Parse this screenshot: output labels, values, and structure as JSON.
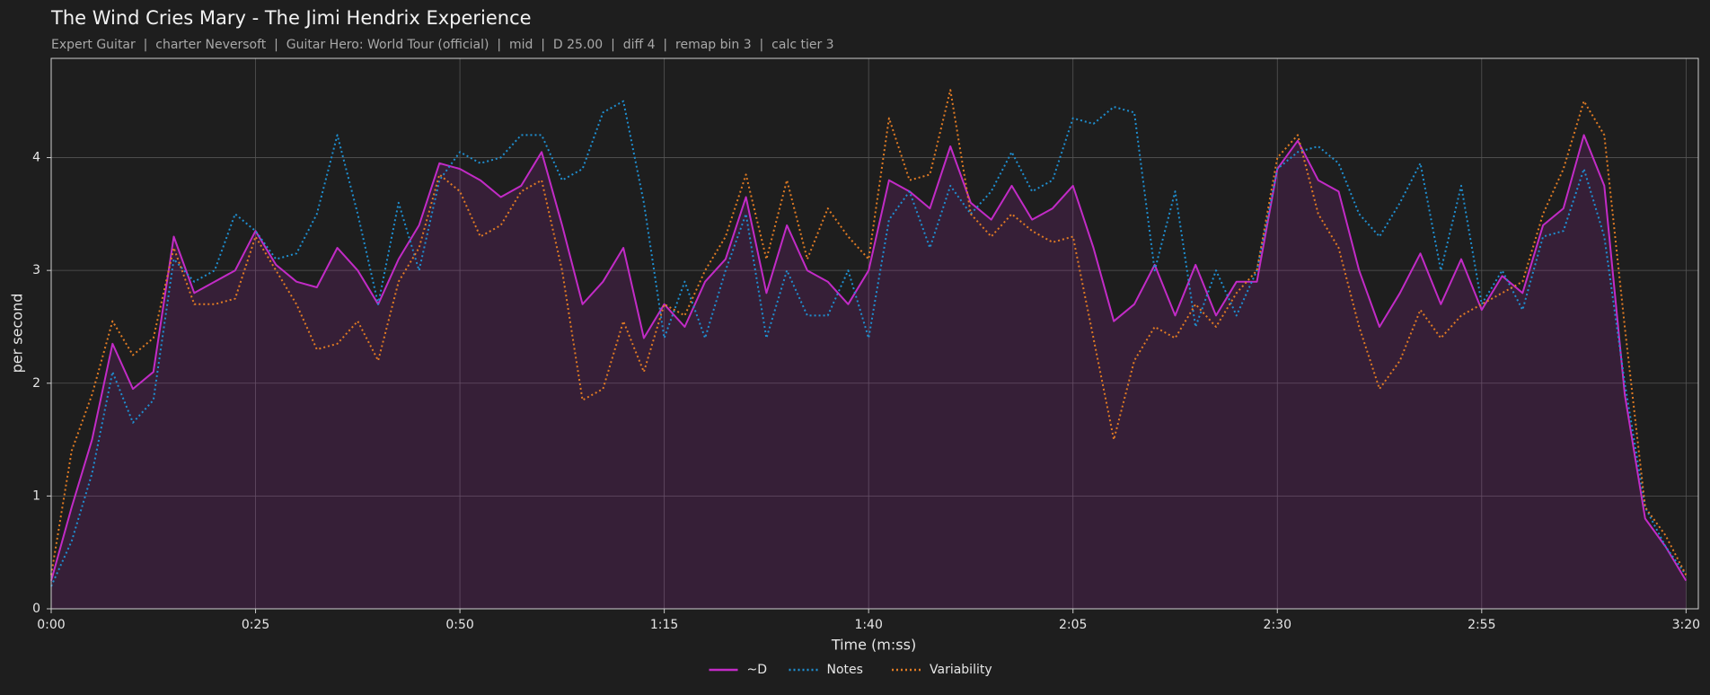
{
  "chart_data": {
    "type": "line",
    "title": "The Wind Cries Mary - The Jimi Hendrix Experience",
    "subtitle": "Expert Guitar  |  charter Neversoft  |  Guitar Hero: World Tour (official)  |  mid  |  D 25.00  |  diff 4  |  remap bin 3  |  calc tier 3",
    "xlabel": "Time (m:ss)",
    "ylabel": "per second",
    "x": [
      0,
      2.5,
      5,
      7.5,
      10,
      12.5,
      15,
      17.5,
      20,
      22.5,
      25,
      27.5,
      30,
      32.5,
      35,
      37.5,
      40,
      42.5,
      45,
      47.5,
      50,
      52.5,
      55,
      57.5,
      60,
      62.5,
      65,
      67.5,
      70,
      72.5,
      75,
      77.5,
      80,
      82.5,
      85,
      87.5,
      90,
      92.5,
      95,
      97.5,
      100,
      102.5,
      105,
      107.5,
      110,
      112.5,
      115,
      117.5,
      120,
      122.5,
      125,
      127.5,
      130,
      132.5,
      135,
      137.5,
      140,
      142.5,
      145,
      147.5,
      150,
      152.5,
      155,
      157.5,
      160,
      162.5,
      165,
      167.5,
      170,
      172.5,
      175,
      177.5,
      180,
      182.5,
      185,
      187.5,
      190,
      192.5,
      195,
      197.5,
      200
    ],
    "series": [
      {
        "name": "~D",
        "color": "#c22bc6",
        "linestyle": "solid",
        "fill": true,
        "values": [
          0.25,
          0.9,
          1.5,
          2.35,
          1.95,
          2.1,
          3.3,
          2.8,
          2.9,
          3.0,
          3.35,
          3.05,
          2.9,
          2.85,
          3.2,
          3.0,
          2.7,
          3.1,
          3.4,
          3.95,
          3.9,
          3.8,
          3.65,
          3.75,
          4.05,
          3.4,
          2.7,
          2.9,
          3.2,
          2.4,
          2.7,
          2.5,
          2.9,
          3.1,
          3.65,
          2.8,
          3.4,
          3.0,
          2.9,
          2.7,
          3.0,
          3.8,
          3.7,
          3.55,
          4.1,
          3.6,
          3.45,
          3.75,
          3.45,
          3.55,
          3.75,
          3.2,
          2.55,
          2.7,
          3.05,
          2.6,
          3.05,
          2.6,
          2.9,
          2.9,
          3.9,
          4.15,
          3.8,
          3.7,
          3.0,
          2.5,
          2.8,
          3.15,
          2.7,
          3.1,
          2.65,
          2.95,
          2.8,
          3.4,
          3.55,
          4.2,
          3.75,
          1.9,
          0.8,
          0.55,
          0.25
        ]
      },
      {
        "name": "Notes",
        "color": "#1f8fd0",
        "linestyle": "dotted",
        "fill": false,
        "values": [
          0.2,
          0.6,
          1.2,
          2.1,
          1.65,
          1.85,
          3.1,
          2.9,
          3.0,
          3.5,
          3.35,
          3.1,
          3.15,
          3.5,
          4.2,
          3.5,
          2.7,
          3.6,
          3.0,
          3.8,
          4.05,
          3.95,
          4.0,
          4.2,
          4.2,
          3.8,
          3.9,
          4.4,
          4.5,
          3.6,
          2.4,
          2.9,
          2.4,
          3.0,
          3.5,
          2.4,
          3.0,
          2.6,
          2.6,
          3.0,
          2.4,
          3.45,
          3.7,
          3.2,
          3.75,
          3.5,
          3.7,
          4.05,
          3.7,
          3.8,
          4.35,
          4.3,
          4.45,
          4.4,
          3.0,
          3.7,
          2.5,
          3.0,
          2.6,
          3.0,
          3.9,
          4.05,
          4.1,
          3.95,
          3.5,
          3.3,
          3.6,
          3.95,
          3.0,
          3.75,
          2.7,
          3.0,
          2.65,
          3.3,
          3.35,
          3.9,
          3.3,
          2.0,
          0.9,
          0.55,
          0.3
        ]
      },
      {
        "name": "Variability",
        "color": "#e07b24",
        "linestyle": "dotted",
        "fill": false,
        "values": [
          0.3,
          1.4,
          1.9,
          2.55,
          2.25,
          2.4,
          3.2,
          2.7,
          2.7,
          2.75,
          3.3,
          3.0,
          2.7,
          2.3,
          2.35,
          2.55,
          2.2,
          2.9,
          3.2,
          3.85,
          3.7,
          3.3,
          3.4,
          3.7,
          3.8,
          3.0,
          1.85,
          1.95,
          2.55,
          2.1,
          2.7,
          2.6,
          3.0,
          3.3,
          3.85,
          3.1,
          3.8,
          3.1,
          3.55,
          3.3,
          3.1,
          4.35,
          3.8,
          3.85,
          4.6,
          3.5,
          3.3,
          3.5,
          3.35,
          3.25,
          3.3,
          2.4,
          1.5,
          2.2,
          2.5,
          2.4,
          2.7,
          2.5,
          2.8,
          3.0,
          4.0,
          4.2,
          3.5,
          3.2,
          2.5,
          1.95,
          2.2,
          2.65,
          2.4,
          2.6,
          2.7,
          2.8,
          2.9,
          3.5,
          3.9,
          4.5,
          4.2,
          2.5,
          0.9,
          0.65,
          0.3
        ]
      }
    ],
    "xlim": [
      0,
      201.5
    ],
    "xticks": [
      {
        "value": 0,
        "label": "0:00"
      },
      {
        "value": 25,
        "label": "0:25"
      },
      {
        "value": 50,
        "label": "0:50"
      },
      {
        "value": 75,
        "label": "1:15"
      },
      {
        "value": 100,
        "label": "1:40"
      },
      {
        "value": 125,
        "label": "2:05"
      },
      {
        "value": 150,
        "label": "2:30"
      },
      {
        "value": 175,
        "label": "2:55"
      },
      {
        "value": 200,
        "label": "3:20"
      }
    ],
    "ylim": [
      0,
      4.88
    ],
    "yticks": [
      0,
      1,
      2,
      3,
      4
    ],
    "grid": true,
    "legend": "bottom"
  }
}
